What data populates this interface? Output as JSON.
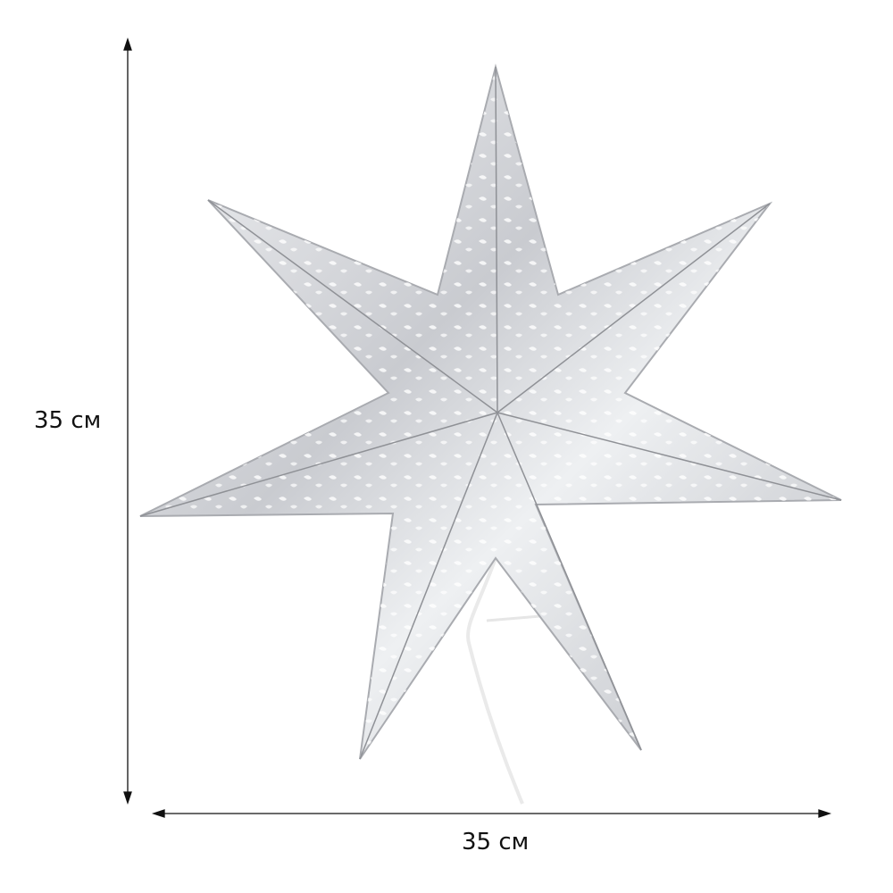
{
  "dimensions": {
    "height_label": "35 см",
    "width_label": "35 см"
  },
  "product": {
    "shape": "seven-point paper star lantern",
    "color": "#d4d6da",
    "accent": "#f4f5f7"
  }
}
